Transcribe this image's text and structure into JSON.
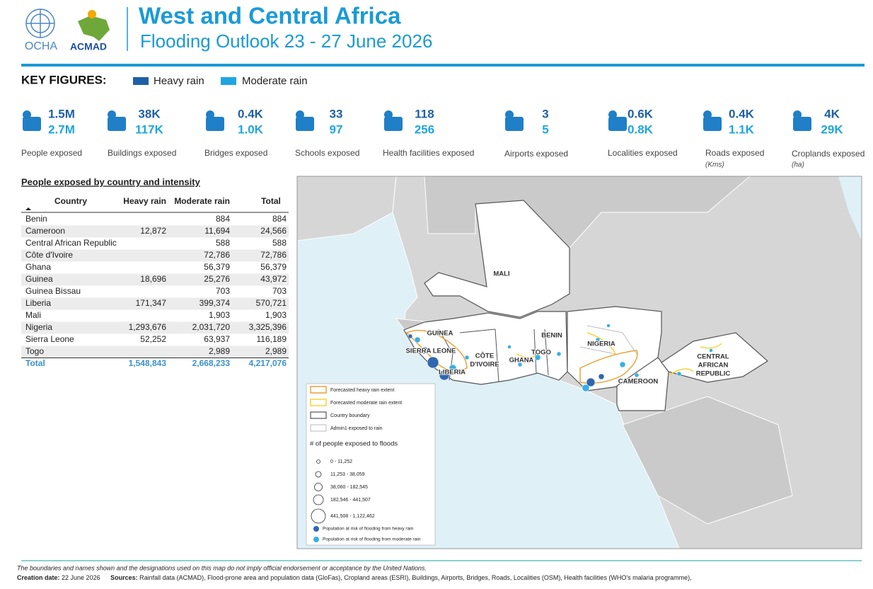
{
  "header": {
    "logos": [
      "OCHA",
      "ACMAD"
    ],
    "title": "West and Central Africa",
    "subtitle": "Flooding Outlook 23 - 27 June 2026"
  },
  "key_figures": {
    "label": "KEY FIGURES:",
    "legend": [
      "Heavy rain",
      "Moderate rain"
    ],
    "items": [
      {
        "heavy": "1.5M",
        "moderate": "2.7M",
        "label": "People exposed"
      },
      {
        "heavy": "38K",
        "moderate": "117K",
        "label": "Buildings exposed"
      },
      {
        "heavy": "0.4K",
        "moderate": "1.0K",
        "label": "Bridges exposed"
      },
      {
        "heavy": "33",
        "moderate": "97",
        "label": "Schools exposed"
      },
      {
        "heavy": "118",
        "moderate": "256",
        "label": "Health facilities exposed"
      },
      {
        "heavy": "3",
        "moderate": "5",
        "label": "Airports exposed"
      },
      {
        "heavy": "0.6K",
        "moderate": "0.8K",
        "label": "Localities exposed"
      },
      {
        "heavy": "0.4K",
        "moderate": "1.1K",
        "label": "Roads exposed",
        "unit": "(Kms)"
      },
      {
        "heavy": "4K",
        "moderate": "29K",
        "label": "Croplands exposed",
        "unit": "(ha)"
      }
    ]
  },
  "table": {
    "title": "People exposed by country and intensity",
    "columns": [
      "Country",
      "Heavy rain",
      "Moderate rain",
      "Total"
    ],
    "rows": [
      [
        "Benin",
        null,
        "884",
        "884"
      ],
      [
        "Cameroon",
        "12,872",
        "11,694",
        "24,566"
      ],
      [
        "Central African Republic",
        null,
        "588",
        "588"
      ],
      [
        "Côte d'Ivoire",
        null,
        "72,786",
        "72,786"
      ],
      [
        "Ghana",
        null,
        "56,379",
        "56,379"
      ],
      [
        "Guinea",
        "18,696",
        "25,276",
        "43,972"
      ],
      [
        "Guinea Bissau",
        null,
        "703",
        "703"
      ],
      [
        "Liberia",
        "171,347",
        "399,374",
        "570,721"
      ],
      [
        "Mali",
        null,
        "1,903",
        "1,903"
      ],
      [
        "Nigeria",
        "1,293,676",
        "2,031,720",
        "3,325,396"
      ],
      [
        "Sierra Leone",
        "52,252",
        "63,937",
        "116,189"
      ],
      [
        "Togo",
        null,
        "2,989",
        "2,989"
      ]
    ],
    "total": [
      "Total",
      "1,548,843",
      "2,668,233",
      "4,217,076"
    ]
  },
  "map": {
    "labels": [
      [
        "MALI"
      ],
      [
        "GUINEA"
      ],
      [
        "SIERRA LEONE"
      ],
      [
        "LIBERIA"
      ],
      [
        "CÔTE",
        "D'IVOIRE"
      ],
      [
        "GHANA"
      ],
      [
        "TOGO"
      ],
      [
        "BENIN"
      ],
      [
        "NIGERIA"
      ],
      [
        "CAMEROON"
      ],
      [
        "CENTRAL",
        "AFRICAN",
        "REPUBLIC"
      ]
    ],
    "legend": {
      "items": [
        "Forecasted heavy rain extent",
        "Forecasted moderate rain extent",
        "Country boundary",
        "Admin1 exposed to rain"
      ],
      "size_title": "# of people exposed to floods",
      "size_classes": [
        "0 - 11,252",
        "11,253 - 38,059",
        "38,060 - 182,545",
        "182,546 - 441,507",
        "441,508 - 1,122,462"
      ],
      "dots": [
        "Population at risk of flooding from heavy rain",
        "Population at risk of flooding from moderate rain"
      ]
    }
  },
  "footer": {
    "disclaimer": "The boundaries and names shown and the designations used on this map do not imply official endorsement or acceptance by the United Nations.",
    "creation_label": "Creation date:",
    "creation_date": "22 June 2026",
    "sources_label": "Sources:",
    "sources": "Rainfall data (ACMAD), Flood-prone area and population data (GloFas), Cropland areas (ESRI), Buildings, Airports, Bridges, Roads, Localities (OSM), Health facilities (WHO's malaria programme),"
  }
}
